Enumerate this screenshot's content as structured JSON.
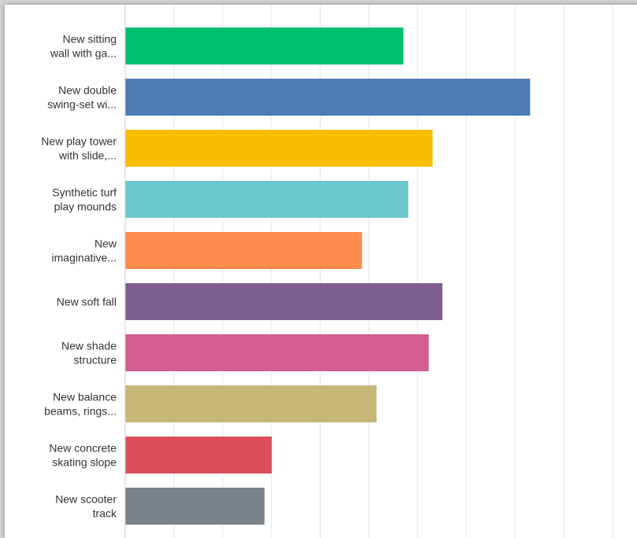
{
  "chart_data": {
    "type": "bar",
    "orientation": "horizontal",
    "title": "",
    "xlabel": "",
    "ylabel": "",
    "xlim": [
      0,
      10
    ],
    "grid": true,
    "legend": "none",
    "categories": [
      [
        "New sitting",
        "wall with ga..."
      ],
      [
        "New double",
        "swing-set wi..."
      ],
      [
        "New play tower",
        "with slide,..."
      ],
      [
        "Synthetic turf",
        "play mounds"
      ],
      [
        "New",
        "imaginative..."
      ],
      [
        "New soft fall"
      ],
      [
        "New shade",
        "structure"
      ],
      [
        "New balance",
        "beams, rings..."
      ],
      [
        "New concrete",
        "skating slope"
      ],
      [
        "New scooter",
        "track"
      ]
    ],
    "values": [
      5.7,
      8.3,
      6.3,
      5.8,
      4.85,
      6.5,
      6.22,
      5.15,
      3.0,
      2.85
    ],
    "colors": [
      "#00bf6f",
      "#507cb6",
      "#f9be00",
      "#6bc8cd",
      "#ff8b4f",
      "#7d5e90",
      "#d25f90",
      "#c7b879",
      "#dc4e5b",
      "#7b8288"
    ]
  }
}
